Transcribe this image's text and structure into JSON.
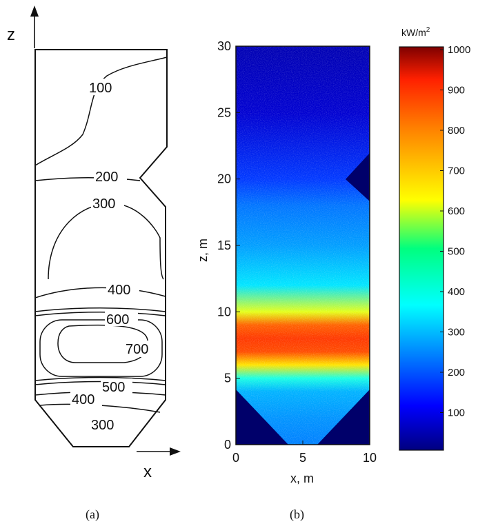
{
  "panel_a": {
    "z_label": "z",
    "x_label": "x",
    "contour_labels": [
      "100",
      "200",
      "300",
      "400",
      "600",
      "700",
      "500",
      "400",
      "300"
    ],
    "caption": "(a)"
  },
  "panel_b": {
    "caption": "(b)",
    "x_axis_label": "x, m",
    "y_axis_label": "z, m",
    "x_ticks": [
      "0",
      "5",
      "10"
    ],
    "y_ticks": [
      "0",
      "5",
      "10",
      "15",
      "20",
      "25",
      "30"
    ],
    "colorbar_unit": "kW/m",
    "colorbar_unit_sup": "2",
    "colorbar_ticks": [
      "100",
      "200",
      "300",
      "400",
      "500",
      "600",
      "700",
      "800",
      "900",
      "1000"
    ]
  },
  "chart_data": {
    "type": "heatmap",
    "xlabel": "x, m",
    "ylabel": "z, m",
    "xlim": [
      0,
      10
    ],
    "ylim": [
      0,
      30
    ],
    "colorbar": {
      "label": "kW/m2",
      "range": [
        0,
        1000
      ],
      "colormap": "jet"
    },
    "profile_z": [
      0,
      2,
      4,
      5,
      6,
      7,
      8,
      9,
      10,
      12,
      15,
      18,
      20,
      25,
      30
    ],
    "profile_flux": [
      250,
      270,
      300,
      400,
      650,
      800,
      820,
      780,
      600,
      350,
      280,
      240,
      180,
      80,
      50
    ]
  }
}
